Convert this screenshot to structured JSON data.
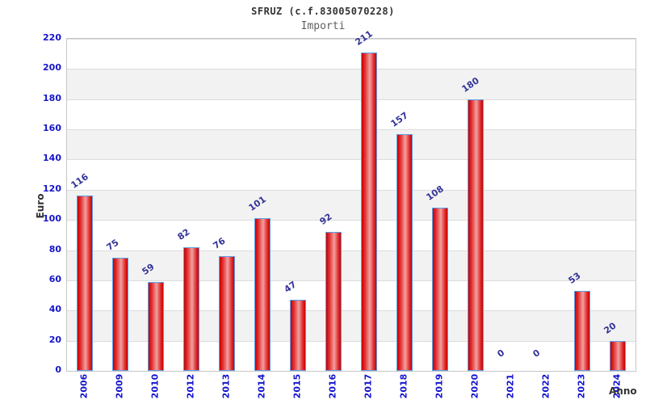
{
  "chart_data": {
    "type": "bar",
    "title": "SFRUZ (c.f.83005070228)",
    "subtitle": "Importi",
    "xlabel": "Anno",
    "ylabel": "Euro",
    "categories": [
      "2006",
      "2009",
      "2010",
      "2012",
      "2013",
      "2014",
      "2015",
      "2016",
      "2017",
      "2018",
      "2019",
      "2020",
      "2021",
      "2022",
      "2023",
      "2024"
    ],
    "values": [
      116,
      75,
      59,
      82,
      76,
      101,
      47,
      92,
      211,
      157,
      108,
      180,
      0,
      0,
      53,
      20
    ],
    "ylim": [
      0,
      220
    ],
    "ytick_step": 20,
    "grid": true,
    "legend": "none",
    "colors": {
      "bar_fill_dark": "#c80000",
      "bar_fill_mid": "#e03030",
      "bar_fill_light": "#f2a0a0",
      "bar_border": "#5e9fe8",
      "tick_label": "#1414cd",
      "value_label": "#333399",
      "band_gray": "#f2f2f2",
      "band_white": "#ffffff",
      "grid_line": "#dcdcdc",
      "plot_border": "#c6c6c6",
      "title_color": "#333333",
      "subtitle_color": "#606060",
      "axis_title_color": "#333333"
    }
  }
}
